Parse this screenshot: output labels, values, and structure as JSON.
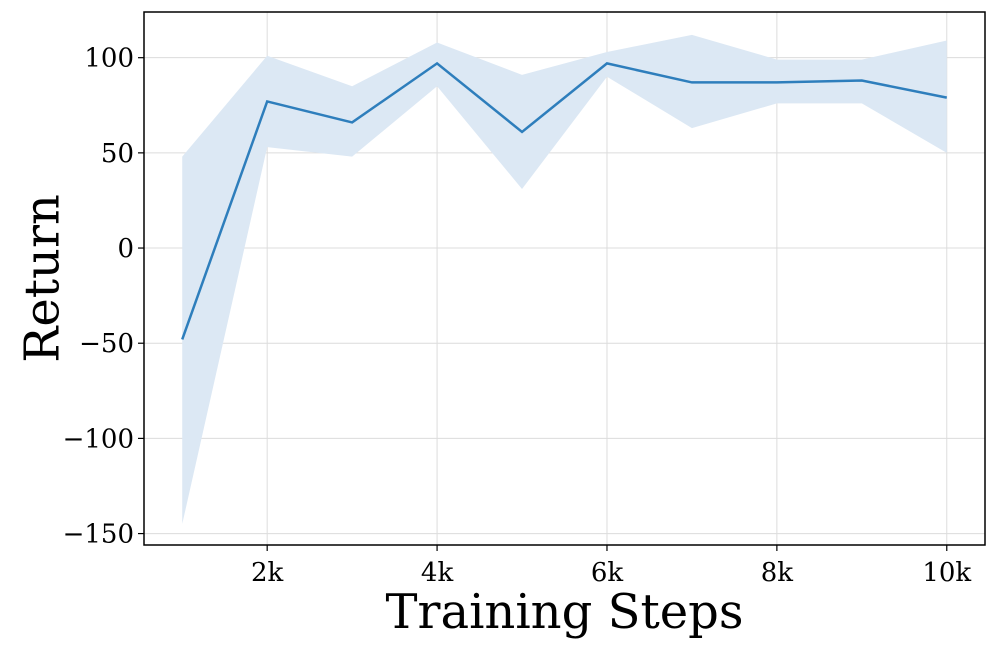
{
  "chart_data": {
    "type": "line",
    "xlabel": "Training Steps",
    "ylabel": "Return",
    "xlim": [
      550,
      10450
    ],
    "ylim": [
      -156,
      124
    ],
    "x_ticks": [
      {
        "value": 2000,
        "label": "2k"
      },
      {
        "value": 4000,
        "label": "4k"
      },
      {
        "value": 6000,
        "label": "6k"
      },
      {
        "value": 8000,
        "label": "8k"
      },
      {
        "value": 10000,
        "label": "10k"
      }
    ],
    "y_ticks": [
      {
        "value": 100,
        "label": "100"
      },
      {
        "value": 50,
        "label": "50"
      },
      {
        "value": 0,
        "label": "0"
      },
      {
        "value": -50,
        "label": "−50"
      },
      {
        "value": -100,
        "label": "−100"
      },
      {
        "value": -150,
        "label": "−150"
      }
    ],
    "grid": true,
    "series": [
      {
        "x": [
          1000,
          2000,
          3000,
          4000,
          5000,
          6000,
          7000,
          8000,
          9000,
          10000
        ],
        "values": [
          -48,
          77,
          66,
          97,
          61,
          97,
          87,
          87,
          88,
          79
        ],
        "lower": [
          -145,
          53,
          48,
          85,
          31,
          90,
          63,
          76,
          76,
          50
        ],
        "upper": [
          48,
          101,
          85,
          108,
          91,
          103,
          112,
          99,
          99,
          109
        ],
        "color": "#2e7ebc",
        "band_color": "#dce8f4"
      }
    ]
  }
}
